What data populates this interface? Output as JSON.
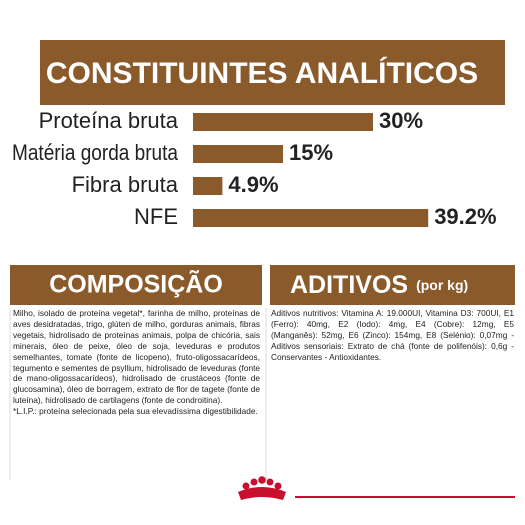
{
  "chart_data": {
    "type": "bar",
    "title": "CONSTITUINTES ANALÍTICOS",
    "categories": [
      "Proteína bruta",
      "Matéria gorda bruta",
      "Fibra bruta",
      "NFE"
    ],
    "values": [
      30,
      15,
      4.9,
      39.2
    ],
    "value_labels": [
      "30%",
      "15%",
      "4.9%",
      "39.2%"
    ],
    "color": "#8a5a2b",
    "xlim": [
      0,
      55
    ]
  },
  "composition": {
    "title": "COMPOSIÇÃO",
    "text": "Milho, isolado de proteína vegetal*, farinha de milho, proteínas de aves desidratadas, trigo, glúten de milho, gorduras animais, fibras vegetais, hidrolisado de proteínas animais, polpa de chicória, sais minerais, óleo de peixe, óleo de soja, leveduras e produtos semelhantes, tomate (fonte de licopeno), fruto-oligossacarídeos, tegumento e sementes de psyllium, hidrolisado de leveduras (fonte de mano-oligossacarídeos), hidrolisado de crustáceos (fonte de glucosamina), óleo de borragem, extrato de flor de tagete (fonte de luteína), hidrolisado de cartilagens (fonte de condroitina).",
    "note": "*L.I.P.: proteína selecionada pela sua elevadíssima digestibilidade."
  },
  "additives": {
    "title": "ADITIVOS",
    "unit": "(por kg)",
    "text": "Aditivos nutritivos: Vitamina A: 19.000UI, Vitamina D3: 700UI, E1 (Ferro): 40mg, E2 (Iodo): 4mg, E4 (Cobre): 12mg, E5 (Manganês): 52mg, E6 (Zinco): 154mg, E8 (Selénio): 0,07mg - Aditivos sensoriais: Extrato de chá (fonte de polifenóis): 0,6g - Conservantes - Antioxidantes."
  }
}
